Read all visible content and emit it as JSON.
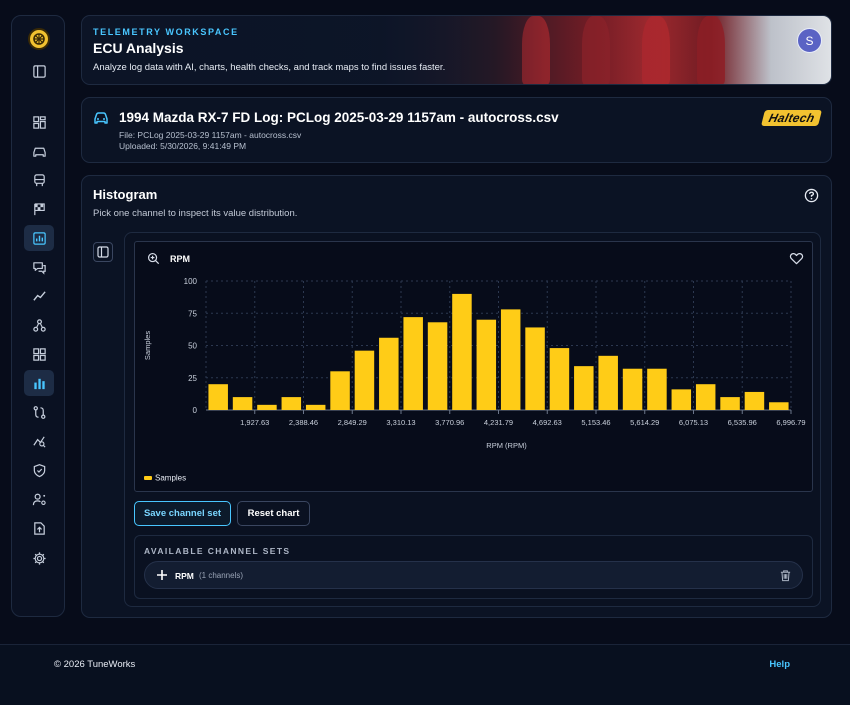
{
  "banner": {
    "eyebrow": "TELEMETRY WORKSPACE",
    "title": "ECU Analysis",
    "subtitle": "Analyze log data with AI, charts, health checks, and track maps to find issues faster.",
    "avatar_initial": "S"
  },
  "log": {
    "title": "1994 Mazda RX-7 FD Log: PCLog 2025-03-29 1157am - autocross.csv",
    "file": "File: PCLog 2025-03-29 1157am - autocross.csv",
    "uploaded": "Uploaded: 5/30/2026, 9:41:49 PM",
    "brand": "Haltech"
  },
  "histogram": {
    "title": "Histogram",
    "subtitle": "Pick one channel to inspect its value distribution.",
    "chart_name": "RPM",
    "save_label": "Save channel set",
    "reset_label": "Reset chart",
    "sets_label": "AVAILABLE CHANNEL SETS",
    "sets": [
      {
        "name": "RPM",
        "count": "(1 channels)"
      }
    ]
  },
  "sidebar": {
    "items": [
      {
        "icon": "collapse-sidebar-icon"
      },
      {
        "icon": "dashboard-icon"
      },
      {
        "icon": "car-icon"
      },
      {
        "icon": "vehicle-front-icon"
      },
      {
        "icon": "checkered-flag-icon"
      },
      {
        "icon": "chart-panel-icon",
        "active": true
      },
      {
        "icon": "chat-icon"
      },
      {
        "icon": "trend-line-icon"
      },
      {
        "icon": "nodes-icon"
      },
      {
        "icon": "grid-icon"
      },
      {
        "icon": "bar-chart-icon",
        "active": true
      },
      {
        "icon": "route-icon"
      },
      {
        "icon": "analytics-search-icon"
      },
      {
        "icon": "shield-icon"
      },
      {
        "icon": "user-settings-icon"
      },
      {
        "icon": "upload-icon"
      },
      {
        "icon": "settings-icon"
      }
    ]
  },
  "footer": {
    "copyright": "© 2026 TuneWorks",
    "help": "Help"
  },
  "colors": {
    "accent": "#49c6ff",
    "bar": "#ffcc17",
    "brand": "#f2c230"
  },
  "chart_data": {
    "type": "bar",
    "title": "RPM",
    "xlabel": "RPM (RPM)",
    "ylabel": "Samples",
    "ylim": [
      0,
      100
    ],
    "yticks": [
      0,
      25,
      50,
      75,
      100
    ],
    "xtick_labels": [
      "1,927.63",
      "2,388.46",
      "2,849.29",
      "3,310.13",
      "3,770.96",
      "4,231.79",
      "4,692.63",
      "5,153.46",
      "5,614.29",
      "6,075.13",
      "6,535.96",
      "6,996.79"
    ],
    "series": [
      {
        "name": "Samples",
        "values": [
          20,
          10,
          4,
          10,
          4,
          30,
          46,
          56,
          72,
          68,
          90,
          70,
          78,
          64,
          48,
          34,
          42,
          32,
          32,
          16,
          20,
          10,
          14,
          6
        ]
      }
    ],
    "legend": "bottom-left",
    "grid": true
  }
}
